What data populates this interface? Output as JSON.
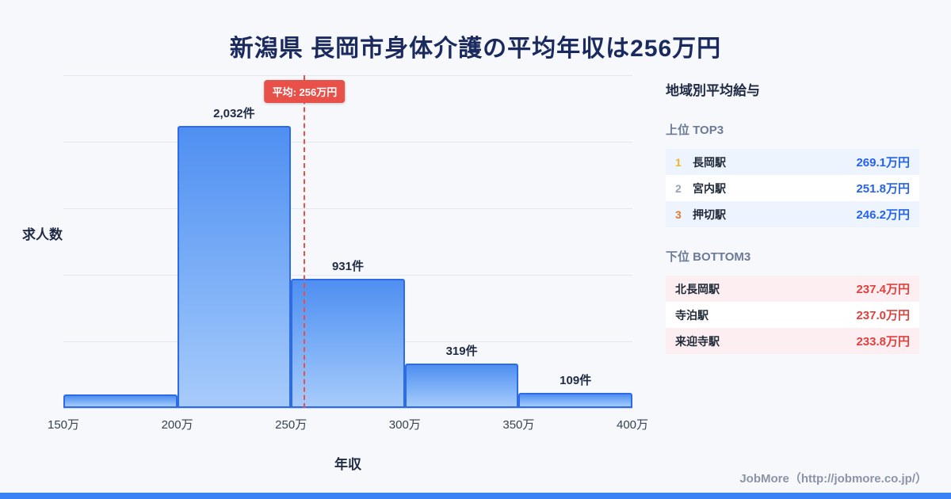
{
  "page": {
    "title": "新潟県 長岡市身体介護の平均年収は256万円",
    "footer": "JobMore（http://jobmore.co.jp/）",
    "accent_color": "#3b82f6"
  },
  "chart_data": {
    "type": "bar",
    "title": "新潟県 長岡市身体介護の平均年収は256万円",
    "xlabel": "年収",
    "ylabel": "求人数",
    "x_ticks": [
      "150万",
      "200万",
      "250万",
      "300万",
      "350万",
      "400万"
    ],
    "x_range": [
      150,
      400
    ],
    "categories": [
      "150万-200万",
      "200万-250万",
      "250万-300万",
      "300万-350万",
      "350万-400万"
    ],
    "values": [
      100,
      2032,
      931,
      319,
      109
    ],
    "bar_labels": [
      "",
      "2,032件",
      "931件",
      "319件",
      "109件"
    ],
    "ylim": [
      0,
      2400
    ],
    "grid": true,
    "bar_border_color": "#2e6be6",
    "bar_fill_top": "#4f8ff1",
    "bar_fill_bottom": "#a7cbfa",
    "average_line": {
      "value": 256,
      "label": "平均: 256万円",
      "color": "#e8504a"
    }
  },
  "side_panel": {
    "title": "地域別平均給与",
    "top": {
      "heading": "上位 TOP3",
      "value_color": "#2563eb",
      "rows": [
        {
          "rank": "1",
          "name": "長岡駅",
          "value": "269.1万円"
        },
        {
          "rank": "2",
          "name": "宮内駅",
          "value": "251.8万円"
        },
        {
          "rank": "3",
          "name": "押切駅",
          "value": "246.2万円"
        }
      ]
    },
    "bottom": {
      "heading": "下位 BOTTOM3",
      "value_color": "#e0413e",
      "rows": [
        {
          "name": "北長岡駅",
          "value": "237.4万円"
        },
        {
          "name": "寺泊駅",
          "value": "237.0万円"
        },
        {
          "name": "来迎寺駅",
          "value": "233.8万円"
        }
      ]
    }
  }
}
